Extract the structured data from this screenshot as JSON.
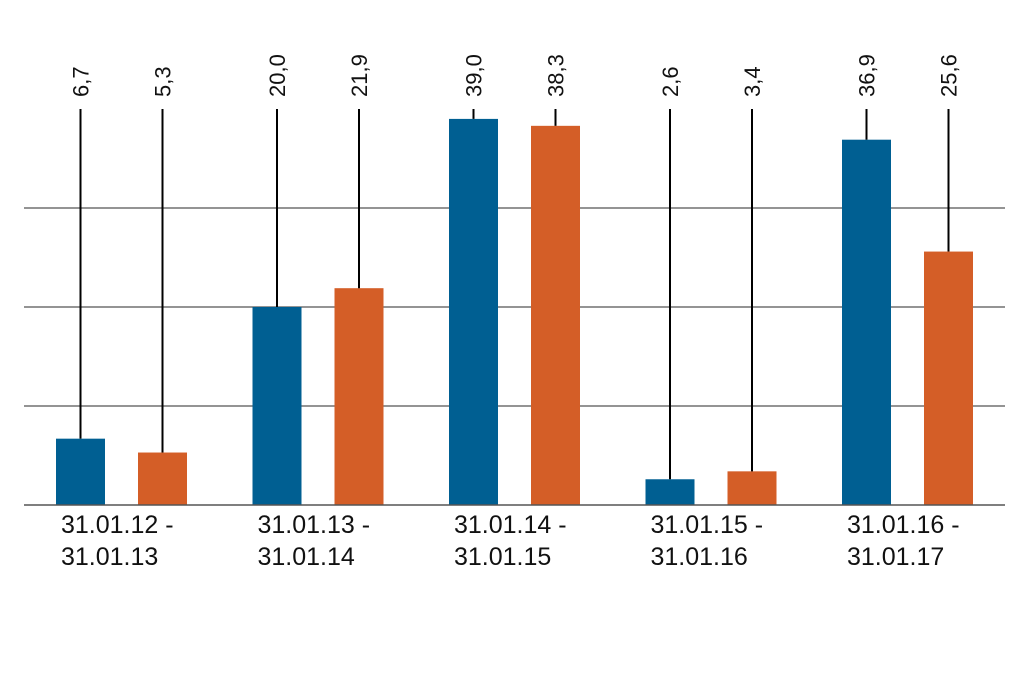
{
  "chart_data": {
    "type": "bar",
    "categories": [
      [
        "31.01.12 -",
        "31.01.13"
      ],
      [
        "31.01.13 -",
        "31.01.14"
      ],
      [
        "31.01.14 -",
        "31.01.15"
      ],
      [
        "31.01.15 -",
        "31.01.16"
      ],
      [
        "31.01.16 -",
        "31.01.17"
      ]
    ],
    "series": [
      {
        "values": [
          6.7,
          20.0,
          39.0,
          2.6,
          36.9
        ],
        "labels": [
          "6,7",
          "20,0",
          "39,0",
          "2,6",
          "36,9"
        ],
        "color": "#005f92"
      },
      {
        "values": [
          5.3,
          21.9,
          38.3,
          3.4,
          25.6
        ],
        "labels": [
          "5,3",
          "21,9",
          "38,3",
          "3,4",
          "25,6"
        ],
        "color": "#d45e27"
      }
    ],
    "ylim": [
      0,
      40
    ],
    "gridlines": [
      10,
      20,
      30
    ],
    "grid": true,
    "legend": "none",
    "title": "",
    "xlabel": "",
    "ylabel": ""
  }
}
